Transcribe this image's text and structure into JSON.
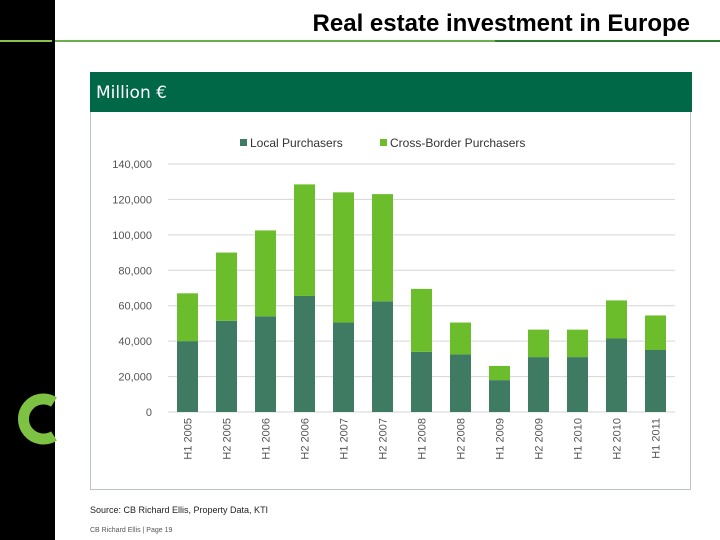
{
  "page": {
    "title": "Real estate investment in Europe",
    "unit_header": "Million €",
    "source": "Source: CB Richard Ellis, Property Data, KTI",
    "footer": "CB Richard Ellis | Page 19"
  },
  "colors": {
    "local": "#3f7b62",
    "cross_border": "#6cbd2c",
    "header_band": "#006747"
  },
  "chart_data": {
    "type": "bar",
    "stacked": true,
    "categories": [
      "H1 2005",
      "H2 2005",
      "H1 2006",
      "H2 2006",
      "H1 2007",
      "H2 2007",
      "H1 2008",
      "H2 2008",
      "H1 2009",
      "H2 2009",
      "H1 2010",
      "H2 2010",
      "H1 2011"
    ],
    "series": [
      {
        "name": "Local Purchasers",
        "values": [
          40000,
          51500,
          54000,
          65500,
          50500,
          62500,
          34000,
          32500,
          18000,
          31000,
          31000,
          41500,
          35000
        ]
      },
      {
        "name": "Cross-Border Purchasers",
        "values": [
          27000,
          38500,
          48500,
          63000,
          73500,
          60500,
          35500,
          18000,
          8000,
          15500,
          15500,
          21500,
          19500
        ]
      }
    ],
    "ylim": [
      0,
      140000
    ],
    "yticks": [
      "0",
      "20,000",
      "40,000",
      "60,000",
      "80,000",
      "100,000",
      "120,000",
      "140,000"
    ],
    "grid": true,
    "legend": "top-center"
  }
}
